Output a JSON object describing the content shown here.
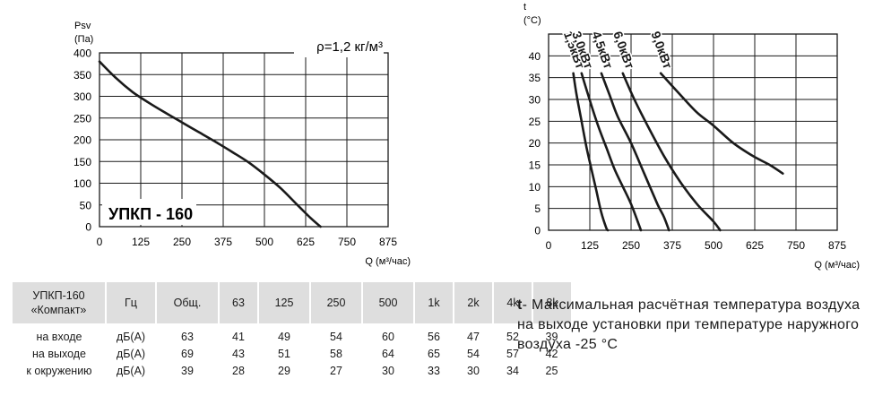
{
  "chart_data": [
    {
      "type": "line",
      "title": "УПКП - 160",
      "annotation": "ρ=1,2 кг/м³",
      "ylabel": "Psv",
      "yunit": "(Па)",
      "xlabel": "Q (м³/час)",
      "xlim": [
        0,
        875
      ],
      "ylim": [
        0,
        400
      ],
      "xticks": [
        0,
        125,
        250,
        375,
        500,
        625,
        750,
        875
      ],
      "yticks": [
        0,
        50,
        100,
        150,
        200,
        250,
        300,
        350,
        400
      ],
      "grid": true,
      "series": [
        {
          "x": [
            0,
            50,
            100,
            150,
            200,
            250,
            300,
            350,
            400,
            450,
            500,
            550,
            600,
            640,
            670
          ],
          "y": [
            380,
            342,
            310,
            285,
            262,
            240,
            218,
            196,
            173,
            149,
            120,
            88,
            50,
            20,
            0
          ]
        }
      ]
    },
    {
      "type": "line",
      "ylabel": "t",
      "yunit": "(°C)",
      "xlabel": "Q (м³/час)",
      "xlim": [
        0,
        875
      ],
      "ylim": [
        0,
        45
      ],
      "xticks": [
        0,
        125,
        250,
        375,
        500,
        625,
        750,
        875
      ],
      "yticks": [
        0,
        5,
        10,
        15,
        20,
        25,
        30,
        35,
        40
      ],
      "grid": true,
      "series": [
        {
          "name": "1,5кВт",
          "x": [
            75,
            85,
            100,
            115,
            130,
            145,
            160,
            175,
            180
          ],
          "y": [
            36,
            31,
            25,
            19,
            14,
            9,
            4,
            0.5,
            0
          ]
        },
        {
          "name": "3,0кВт",
          "x": [
            100,
            120,
            150,
            175,
            200,
            225,
            250,
            275,
            280
          ],
          "y": [
            36,
            31,
            24,
            19,
            14,
            10,
            6,
            1,
            0
          ]
        },
        {
          "name": "4,5кВт",
          "x": [
            160,
            185,
            210,
            250,
            290,
            330,
            350,
            365
          ],
          "y": [
            36,
            31,
            26,
            20,
            13,
            6,
            3,
            0
          ]
        },
        {
          "name": "6,0кВт",
          "x": [
            225,
            260,
            300,
            350,
            400,
            450,
            500,
            520
          ],
          "y": [
            36,
            30,
            24,
            17,
            11,
            6,
            2,
            0
          ]
        },
        {
          "name": "9,0кВт",
          "x": [
            340,
            400,
            450,
            500,
            560,
            620,
            670,
            710
          ],
          "y": [
            36,
            31,
            27,
            24,
            20,
            17,
            15,
            13
          ]
        }
      ]
    }
  ],
  "noise_table": {
    "header": [
      "УПКП-160\n«Компакт»",
      "Гц",
      "Общ.",
      "63",
      "125",
      "250",
      "500",
      "1k",
      "2k",
      "4k",
      "8k"
    ],
    "rows": [
      [
        "на входе",
        "дБ(А)",
        "63",
        "41",
        "49",
        "54",
        "60",
        "56",
        "47",
        "52",
        "39"
      ],
      [
        "на выходе",
        "дБ(А)",
        "69",
        "43",
        "51",
        "58",
        "64",
        "65",
        "54",
        "57",
        "42"
      ],
      [
        "к окружению",
        "дБ(А)",
        "39",
        "28",
        "29",
        "27",
        "30",
        "33",
        "30",
        "34",
        "25"
      ]
    ]
  },
  "note": {
    "symbol": "t",
    "text": "- Максимальная расчётная температура воздуха на выходе установки при температуре наружного воздуха -25 °С"
  }
}
